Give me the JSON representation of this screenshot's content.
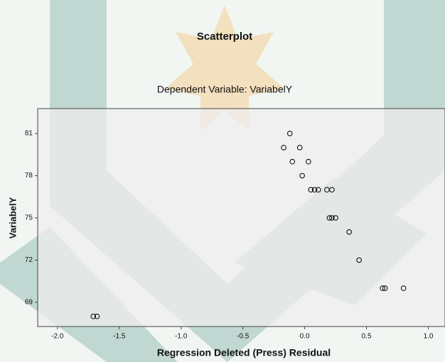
{
  "chart_data": {
    "type": "scatter",
    "title": "Scatterplot",
    "subtitle": "Dependent Variable: VariabelY",
    "x_label": "Regression Deleted (Press) Residual",
    "y_label": "VariabelY",
    "color": "#000000",
    "x": [
      -0.12,
      -0.17,
      -0.04,
      -0.1,
      0.03,
      -0.02,
      0.05,
      0.08,
      0.11,
      0.18,
      0.22,
      0.2,
      0.22,
      0.25,
      0.36,
      0.44,
      0.63,
      0.65,
      0.8,
      -1.71,
      -1.68
    ],
    "values": [
      81,
      80,
      80,
      79,
      79,
      78,
      77,
      77,
      77,
      77,
      77,
      75,
      75,
      75,
      74,
      72,
      70,
      70,
      70,
      68,
      68
    ],
    "xlim": [
      -2.16,
      1.135
    ],
    "ylim": [
      67.28,
      82.77
    ],
    "xticks": [
      {
        "value": -2.0,
        "label": "-2.0"
      },
      {
        "value": -1.5,
        "label": "-1.5"
      },
      {
        "value": -1.0,
        "label": "-1.0"
      },
      {
        "value": -0.5,
        "label": "-0.5"
      },
      {
        "value": 0.0,
        "label": "0.0"
      },
      {
        "value": 0.5,
        "label": "0.5"
      },
      {
        "value": 1.0,
        "label": "1.0"
      }
    ],
    "yticks": [
      69,
      72,
      75,
      78,
      81
    ]
  }
}
